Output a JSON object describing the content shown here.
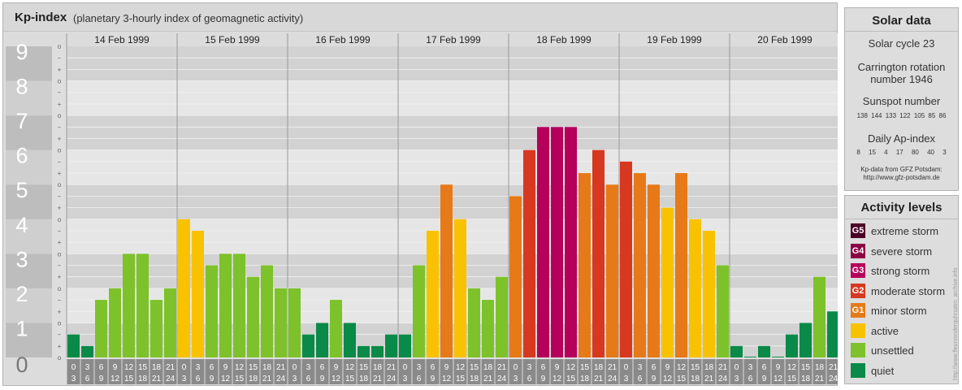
{
  "header": {
    "title": "Kp-index",
    "subtitle": "(planetary 3-hourly index of geomagnetic activity)"
  },
  "chart_data": {
    "type": "bar",
    "title": "Kp-index",
    "ylim": [
      0,
      9
    ],
    "yticks": [
      "0",
      "1",
      "2",
      "3",
      "4",
      "5",
      "6",
      "7",
      "8",
      "9"
    ],
    "minor_tick_symbols": [
      "o",
      "+",
      "−"
    ],
    "days": [
      "14 Feb 1999",
      "15 Feb 1999",
      "16 Feb 1999",
      "17 Feb 1999",
      "18 Feb 1999",
      "19 Feb 1999",
      "20 Feb 1999"
    ],
    "hour_labels": [
      [
        "0",
        "3"
      ],
      [
        "3",
        "6"
      ],
      [
        "6",
        "9"
      ],
      [
        "9",
        "12"
      ],
      [
        "12",
        "15"
      ],
      [
        "15",
        "18"
      ],
      [
        "18",
        "21"
      ],
      [
        "21",
        "24"
      ]
    ],
    "values": [
      [
        0.667,
        0.333,
        1.667,
        2.0,
        3.0,
        3.0,
        1.667,
        2.0
      ],
      [
        4.0,
        3.667,
        2.667,
        3.0,
        3.0,
        2.333,
        2.667,
        2.0
      ],
      [
        2.0,
        0.667,
        1.0,
        1.667,
        1.0,
        0.333,
        0.333,
        0.667
      ],
      [
        0.667,
        2.667,
        3.667,
        5.0,
        4.0,
        2.0,
        1.667,
        2.333
      ],
      [
        4.667,
        6.0,
        6.667,
        6.667,
        6.667,
        5.333,
        6.0,
        5.0
      ],
      [
        5.667,
        5.333,
        5.0,
        4.333,
        5.333,
        4.0,
        3.667,
        2.667
      ],
      [
        0.333,
        0.0,
        0.333,
        0.0,
        0.667,
        1.0,
        2.333,
        1.333
      ]
    ]
  },
  "solar": {
    "title": "Solar data",
    "cycle": "Solar cycle 23",
    "carrington_line1": "Carrington rotation",
    "carrington_line2": "number 1946",
    "sunspot_title": "Sunspot number",
    "sunspot_values": "138 144 133 122 105 85 86",
    "ap_title": "Daily Ap-index",
    "ap_values": "8 15 4 17 80 40 3",
    "source_line1": "Kp-data from GFZ Potsdam:",
    "source_line2": "http://www.gfz-potsdam.de"
  },
  "levels": {
    "title": "Activity levels",
    "items": [
      {
        "code": "G5",
        "label": "extreme storm",
        "color": "#4a0026"
      },
      {
        "code": "G4",
        "label": "severe storm",
        "color": "#8c0044"
      },
      {
        "code": "G3",
        "label": "strong storm",
        "color": "#b5005b"
      },
      {
        "code": "G2",
        "label": "moderate storm",
        "color": "#d73820"
      },
      {
        "code": "G1",
        "label": "minor storm",
        "color": "#e67a18"
      },
      {
        "code": "",
        "label": "active",
        "color": "#f9c200"
      },
      {
        "code": "",
        "label": "unsettled",
        "color": "#7dc22a"
      },
      {
        "code": "",
        "label": "quiet",
        "color": "#0a8a48"
      }
    ]
  },
  "credit": "http://www.fleurvonderquhrsatro_archive.info"
}
